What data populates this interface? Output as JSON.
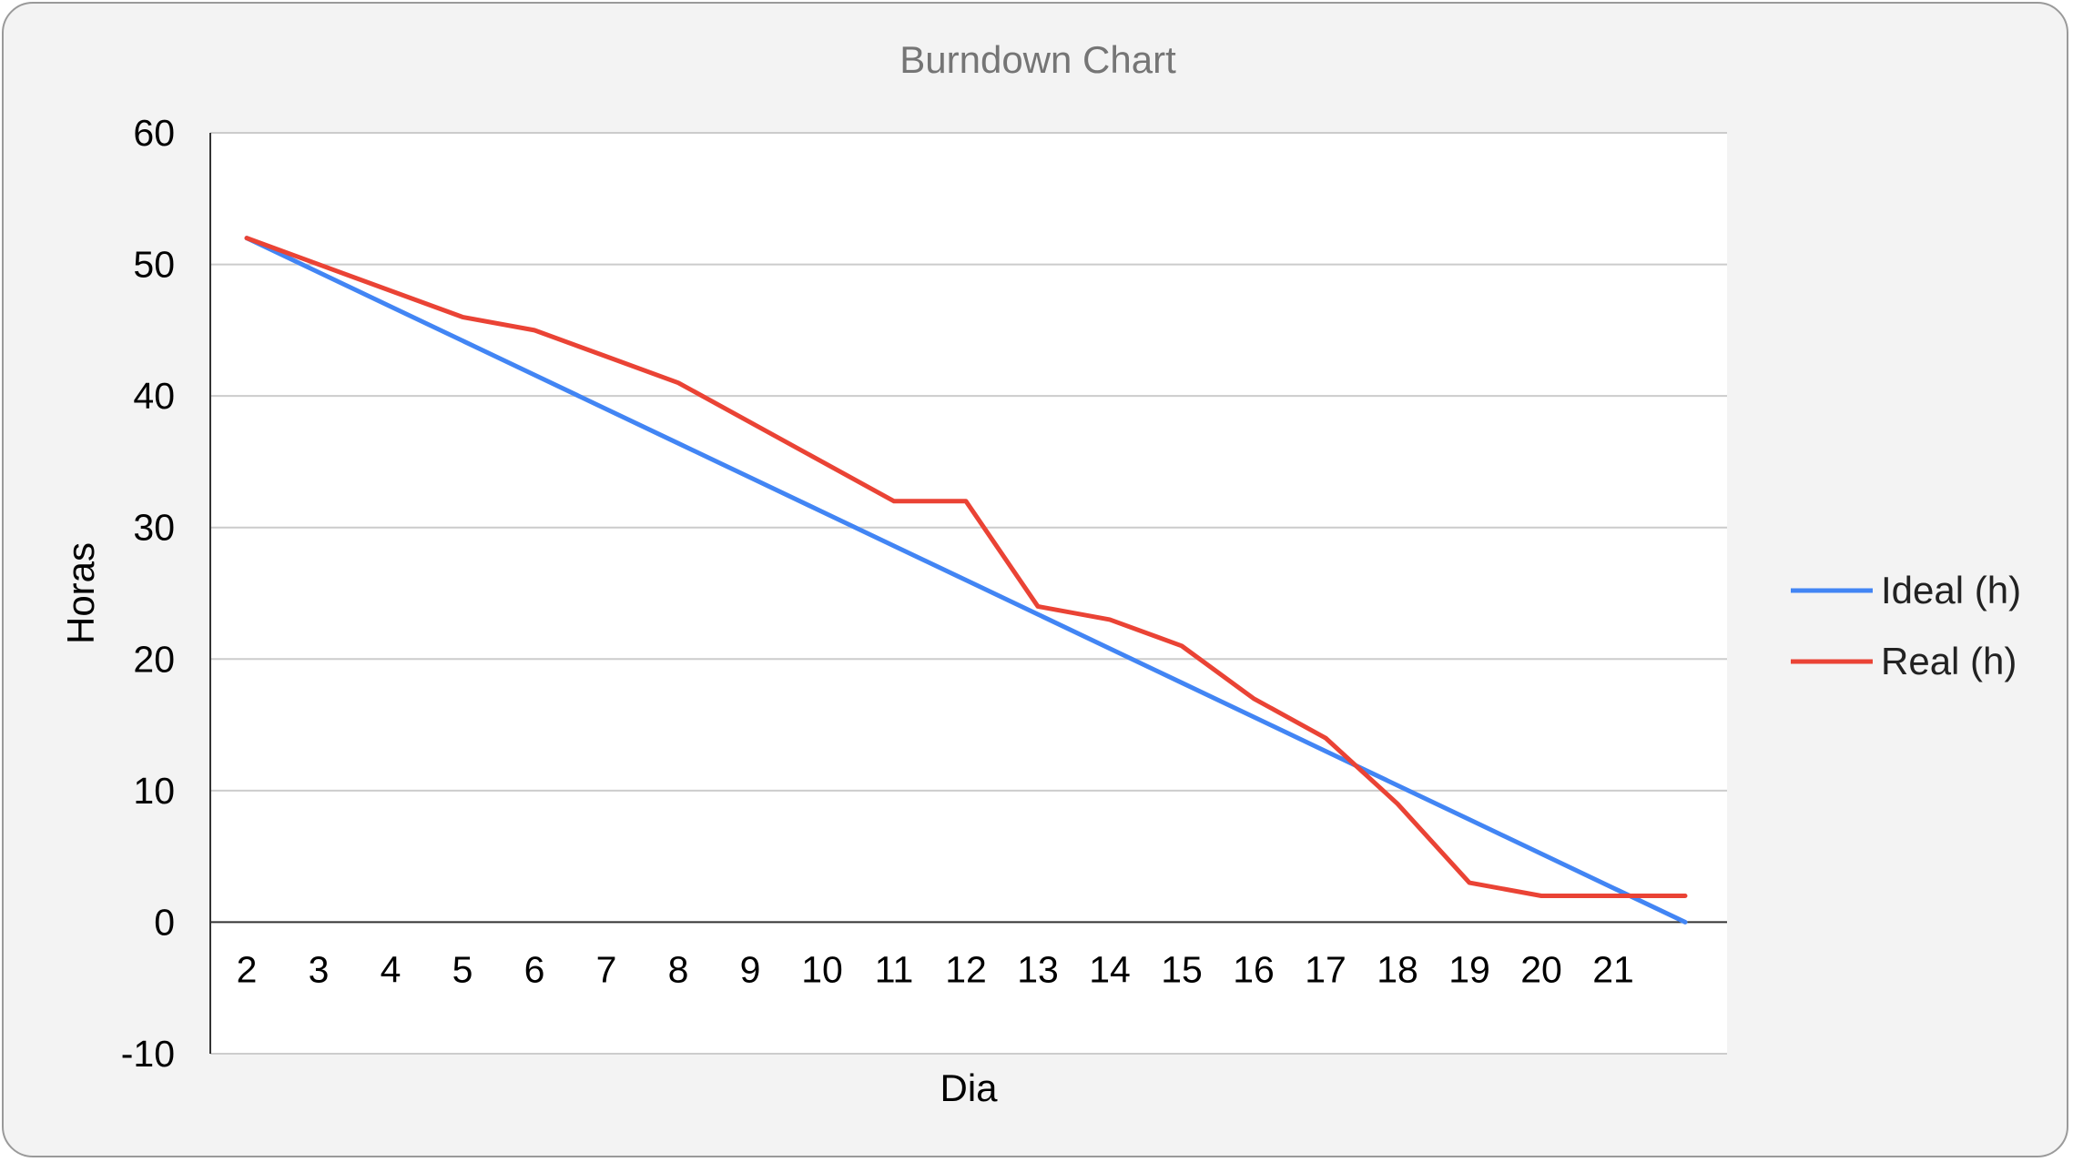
{
  "chart_data": {
    "type": "line",
    "title": "Burndown Chart",
    "xlabel": "Dia",
    "ylabel": "Horas",
    "ylim": [
      -10,
      60
    ],
    "yticks": [
      "60",
      "50",
      "40",
      "30",
      "20",
      "10",
      "0",
      "-10"
    ],
    "categories": [
      "2",
      "3",
      "4",
      "5",
      "6",
      "7",
      "8",
      "9",
      "10",
      "11",
      "12",
      "13",
      "14",
      "15",
      "16",
      "17",
      "18",
      "19",
      "20",
      "21",
      ""
    ],
    "series": [
      {
        "name": "Ideal (h)",
        "color": "#4285f4",
        "values": [
          52,
          49.4,
          46.8,
          44.2,
          41.6,
          39,
          36.4,
          33.8,
          31.2,
          28.6,
          26,
          23.4,
          20.8,
          18.2,
          15.6,
          13,
          10.4,
          7.8,
          5.2,
          2.6,
          0
        ]
      },
      {
        "name": "Real (h)",
        "color": "#ea4335",
        "values": [
          52,
          50,
          48,
          46,
          45,
          43,
          41,
          38,
          35,
          32,
          32,
          24,
          23,
          21,
          17,
          14,
          9,
          3,
          2,
          2,
          2
        ]
      }
    ],
    "grid": true,
    "legend": "right"
  }
}
